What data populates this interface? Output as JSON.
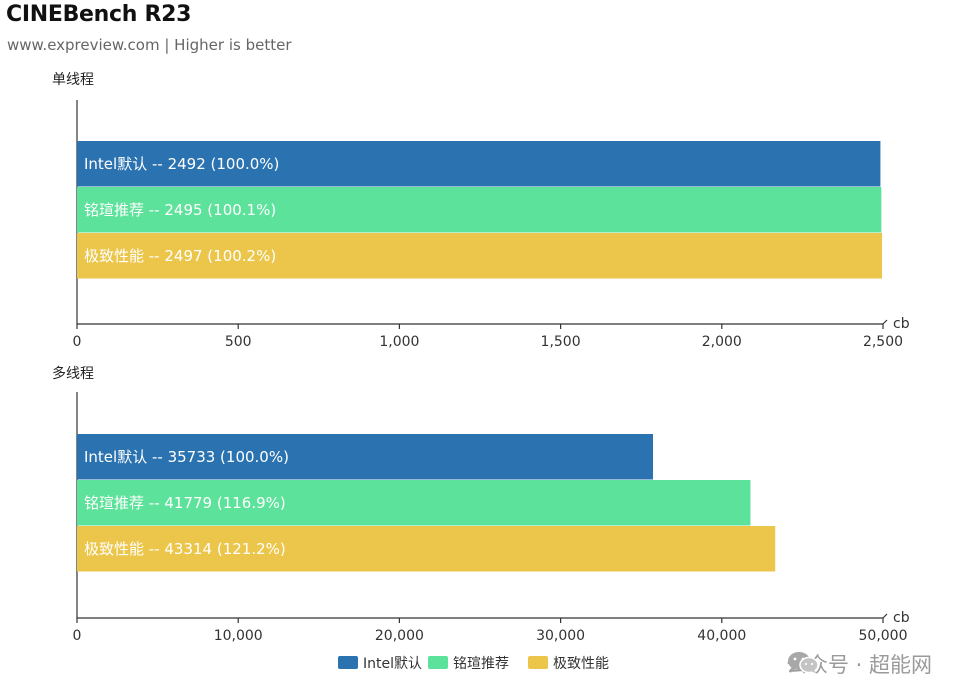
{
  "title": "CINEBench R23",
  "subtitle": "www.expreview.com | Higher is better",
  "watermark": {
    "text": "公众号 · 超能网",
    "icon": "wechat-icon"
  },
  "colors": {
    "Intel默认": "#2b72b0",
    "铭瑄推荐": "#5ce29a",
    "极致性能": "#ecc64b"
  },
  "chart_data": [
    {
      "type": "bar",
      "orientation": "horizontal",
      "panel_label": "单线程",
      "unit": "cb",
      "xlim": [
        0,
        2500
      ],
      "ticks": [
        "0",
        "500",
        "1,000",
        "1,500",
        "2,000",
        "2,500"
      ],
      "tick_values": [
        0,
        500,
        1000,
        1500,
        2000,
        2500
      ],
      "bars": [
        {
          "series": "Intel默认",
          "value": 2492,
          "label": "Intel默认  --  2492 (100.0%)"
        },
        {
          "series": "铭瑄推荐",
          "value": 2495,
          "label": "铭瑄推荐  --  2495 (100.1%)"
        },
        {
          "series": "极致性能",
          "value": 2497,
          "label": "极致性能  --  2497 (100.2%)"
        }
      ]
    },
    {
      "type": "bar",
      "orientation": "horizontal",
      "panel_label": "多线程",
      "unit": "cb",
      "xlim": [
        0,
        50000
      ],
      "ticks": [
        "0",
        "10,000",
        "20,000",
        "30,000",
        "40,000",
        "50,000"
      ],
      "tick_values": [
        0,
        10000,
        20000,
        30000,
        40000,
        50000
      ],
      "bars": [
        {
          "series": "Intel默认",
          "value": 35733,
          "label": "Intel默认  --  35733 (100.0%)"
        },
        {
          "series": "铭瑄推荐",
          "value": 41779,
          "label": "铭瑄推荐  --  41779 (116.9%)"
        },
        {
          "series": "极致性能",
          "value": 43314,
          "label": "极致性能  --  43314 (121.2%)"
        }
      ]
    }
  ],
  "legend": {
    "position": "bottom-center",
    "items": [
      "Intel默认",
      "铭瑄推荐",
      "极致性能"
    ]
  }
}
